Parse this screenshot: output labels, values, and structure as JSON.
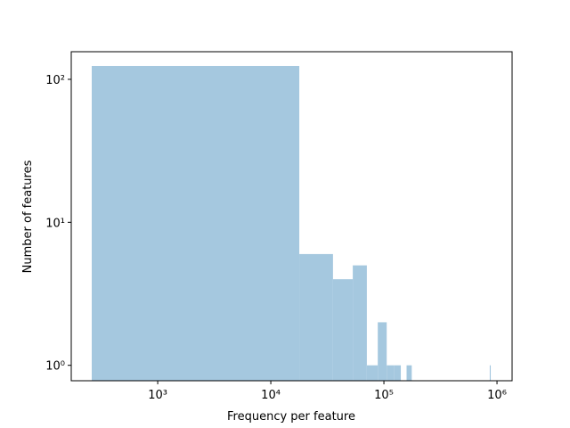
{
  "chart_data": {
    "type": "histogram",
    "xlabel": "Frequency per feature",
    "ylabel": "Number of features",
    "xscale": "log",
    "yscale": "log",
    "color": "#a5c8df",
    "bins": [
      261,
      17861,
      35461,
      53061,
      70661,
      88261,
      105861,
      123461,
      141061,
      158661,
      176261,
      193861,
      211461,
      229061,
      246661,
      264261,
      281861,
      299461,
      317061,
      334661,
      352261,
      369861,
      387461,
      405061,
      422661,
      440261,
      457861,
      475461,
      493061,
      510661,
      528261,
      545861,
      563461,
      581061,
      598661,
      616261,
      633861,
      651461,
      669061,
      686661,
      704261,
      721861,
      739461,
      757061,
      774661,
      792261,
      809861,
      827461,
      845061,
      862661,
      880261
    ],
    "values": [
      124,
      6,
      4,
      5,
      1,
      2,
      1,
      1,
      0,
      1,
      0,
      0,
      0,
      0,
      0,
      0,
      0,
      0,
      0,
      0,
      0,
      0,
      0,
      0,
      0,
      0,
      0,
      0,
      0,
      0,
      0,
      0,
      0,
      0,
      0,
      0,
      0,
      0,
      0,
      0,
      0,
      0,
      0,
      0,
      0,
      0,
      0,
      0,
      0,
      1
    ],
    "xlim": [
      172,
      1360000
    ],
    "ylim": [
      0.78,
      156
    ],
    "xticks": [
      {
        "value": 1000,
        "label": "10³"
      },
      {
        "value": 10000,
        "label": "10⁴"
      },
      {
        "value": 100000,
        "label": "10⁵"
      },
      {
        "value": 1000000,
        "label": "10⁶"
      }
    ],
    "yticks": [
      {
        "value": 1,
        "label": "10⁰"
      },
      {
        "value": 10,
        "label": "10¹"
      },
      {
        "value": 100,
        "label": "10²"
      }
    ]
  }
}
